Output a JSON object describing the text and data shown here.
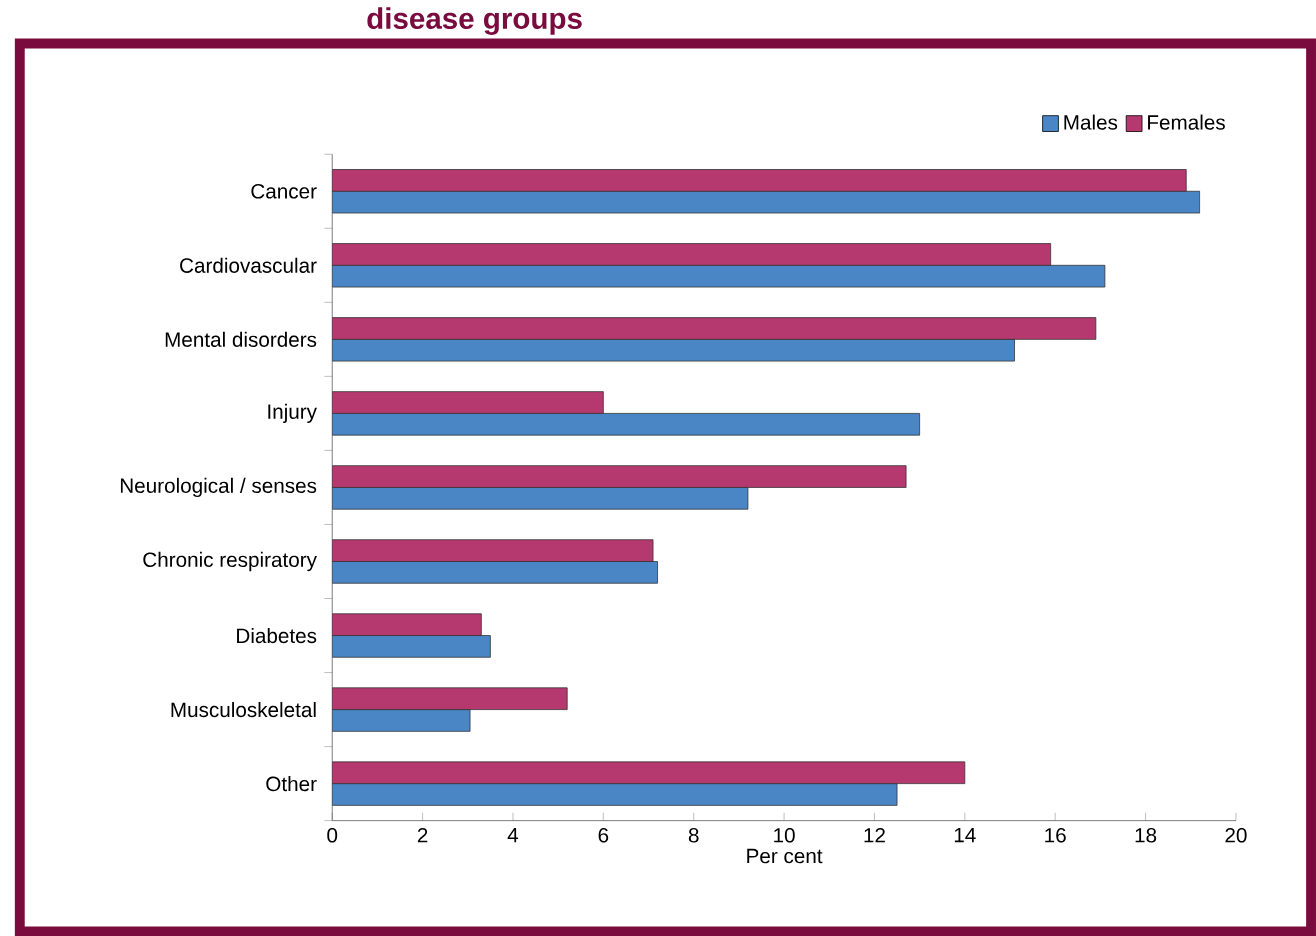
{
  "chart_data": {
    "type": "bar",
    "orientation": "horizontal",
    "title": "disease groups",
    "categories": [
      "Cancer",
      "Cardiovascular",
      "Mental disorders",
      "Injury",
      "Neurological / senses",
      "Chronic respiratory",
      "Diabetes",
      "Musculoskeletal",
      "Other"
    ],
    "series": [
      {
        "name": "Males",
        "color": "#4a86c5",
        "values": [
          19.2,
          17.1,
          15.1,
          13.0,
          9.2,
          7.2,
          3.5,
          3.05,
          12.5
        ]
      },
      {
        "name": "Females",
        "color": "#b5386f",
        "values": [
          18.9,
          15.9,
          16.9,
          6.0,
          12.7,
          7.1,
          3.3,
          5.2,
          14.0
        ]
      }
    ],
    "xlabel": "Per cent",
    "xlim": [
      0,
      20
    ],
    "xticks": [
      0,
      2,
      4,
      6,
      8,
      10,
      12,
      14,
      16,
      18,
      20
    ],
    "legend": "top right",
    "grid": false
  }
}
